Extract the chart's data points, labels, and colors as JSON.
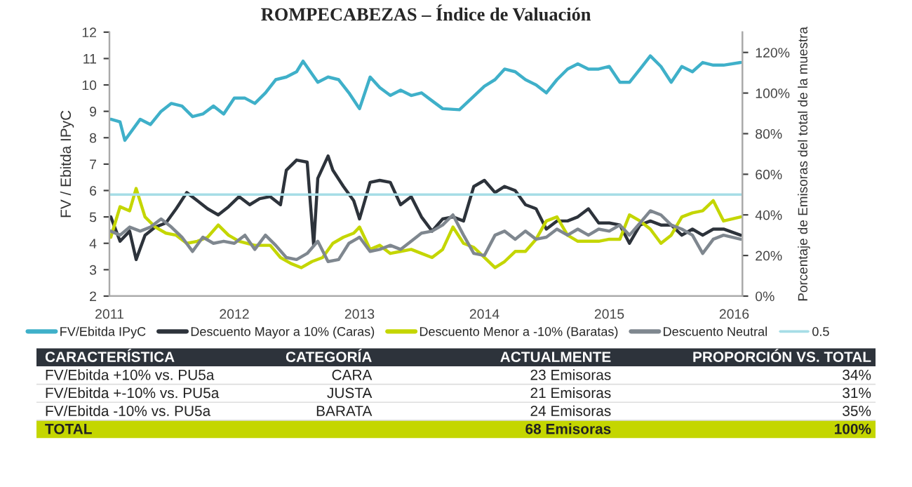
{
  "chart_data": [
    {
      "type": "line",
      "title": "ROMPECABEZAS – Índice de Valuación",
      "ylabel": "FV / Ebitda IPyC",
      "y2label": "Porcentaje de Emisoras del total de la muestra",
      "xlim": [
        "2011-01-01",
        "2016-01-25"
      ],
      "xticks": [
        {
          "value": "2011-01-01",
          "label": "2011"
        },
        {
          "value": "2012-01-01",
          "label": "2012"
        },
        {
          "value": "2013-01-01",
          "label": "2013"
        },
        {
          "value": "2014-01-01",
          "label": "2014"
        },
        {
          "value": "2015-01-01",
          "label": "2015"
        },
        {
          "value": "2016-01-01",
          "label": "2016"
        }
      ],
      "ylim": [
        2,
        12
      ],
      "yticks": [
        2,
        3,
        4,
        5,
        6,
        7,
        8,
        9,
        10,
        11,
        12
      ],
      "y2lim": [
        0,
        1.3
      ],
      "y2ticks": [
        {
          "value": 0,
          "label": "0%"
        },
        {
          "value": 0.2,
          "label": "20%"
        },
        {
          "value": 0.4,
          "label": "40%"
        },
        {
          "value": 0.6,
          "label": "60%"
        },
        {
          "value": 0.8,
          "label": "80%"
        },
        {
          "value": 1.0,
          "label": "100%"
        },
        {
          "value": 1.2,
          "label": "120%"
        }
      ],
      "legend": "bottom",
      "ref_lines": [
        {
          "axis": "y2",
          "value": 0.5,
          "label": "0.5",
          "color": "#a6dde6"
        }
      ],
      "series": [
        {
          "name": "FV/Ebitda IPyC",
          "color": "#3fb0c9",
          "x": [
            "2011-01-05",
            "2011-02-01",
            "2011-02-15",
            "2011-04-01",
            "2011-05-01",
            "2011-06-01",
            "2011-07-01",
            "2011-08-01",
            "2011-09-01",
            "2011-10-01",
            "2011-11-01",
            "2011-12-01",
            "2012-01-01",
            "2012-02-01",
            "2012-03-01",
            "2012-04-01",
            "2012-05-01",
            "2012-06-01",
            "2012-07-01",
            "2012-07-20",
            "2012-09-01",
            "2012-10-01",
            "2012-11-01",
            "2012-12-01",
            "2013-01-01",
            "2013-02-01",
            "2013-03-01",
            "2013-04-01",
            "2013-05-01",
            "2013-06-01",
            "2013-07-01",
            "2013-08-01",
            "2013-09-01",
            "2013-10-20",
            "2014-01-01",
            "2014-02-01",
            "2014-03-01",
            "2014-04-01",
            "2014-05-01",
            "2014-06-01",
            "2014-07-01",
            "2014-08-01",
            "2014-09-01",
            "2014-10-01",
            "2014-11-01",
            "2014-12-01",
            "2015-01-01",
            "2015-02-01",
            "2015-03-01",
            "2015-04-01",
            "2015-05-01",
            "2015-06-01",
            "2015-07-01",
            "2015-08-01",
            "2015-09-01",
            "2015-10-01",
            "2015-11-01",
            "2015-12-01",
            "2016-01-20"
          ],
          "values": [
            8.7,
            8.6,
            7.9,
            8.7,
            8.5,
            9.0,
            9.3,
            9.2,
            8.8,
            8.9,
            9.2,
            8.9,
            9.5,
            9.5,
            9.3,
            9.7,
            10.2,
            10.3,
            10.5,
            10.9,
            10.1,
            10.3,
            10.2,
            9.7,
            9.1,
            10.3,
            9.9,
            9.6,
            9.8,
            9.6,
            9.7,
            9.4,
            9.1,
            9.06,
            9.95,
            10.2,
            10.6,
            10.5,
            10.2,
            10.0,
            9.7,
            10.2,
            10.6,
            10.8,
            10.6,
            10.6,
            10.7,
            10.1,
            10.1,
            10.6,
            11.1,
            10.7,
            10.1,
            10.7,
            10.5,
            10.85,
            10.75,
            10.75,
            10.85
          ]
        },
        {
          "name": "Descuento Mayor a 10% (Caras)",
          "color": "#2d333b",
          "axis": "y2",
          "x": [
            "2011-01-05",
            "2011-02-01",
            "2011-03-01",
            "2011-03-20",
            "2011-04-15",
            "2011-05-15",
            "2011-06-15",
            "2011-07-15",
            "2011-08-15",
            "2011-09-15",
            "2011-10-15",
            "2011-11-15",
            "2011-12-15",
            "2012-01-15",
            "2012-02-15",
            "2012-03-15",
            "2012-04-15",
            "2012-05-15",
            "2012-06-01",
            "2012-07-01",
            "2012-08-01",
            "2012-08-20",
            "2012-09-01",
            "2012-10-01",
            "2012-10-15",
            "2012-11-15",
            "2012-12-15",
            "2013-01-01",
            "2013-02-01",
            "2013-03-01",
            "2013-04-01",
            "2013-05-01",
            "2013-06-01",
            "2013-07-01",
            "2013-08-01",
            "2013-09-01",
            "2013-10-01",
            "2013-11-01",
            "2013-12-01",
            "2014-01-01",
            "2014-02-01",
            "2014-03-01",
            "2014-04-01",
            "2014-05-01",
            "2014-06-01",
            "2014-07-01",
            "2014-08-01",
            "2014-09-01",
            "2014-10-01",
            "2014-11-01",
            "2014-12-01",
            "2015-01-01",
            "2015-02-01",
            "2015-03-01",
            "2015-04-01",
            "2015-05-01",
            "2015-06-01",
            "2015-07-01",
            "2015-08-01",
            "2015-09-01",
            "2015-10-01",
            "2015-11-01",
            "2015-12-01",
            "2016-01-20"
          ],
          "values": [
            0.39,
            0.27,
            0.32,
            0.18,
            0.3,
            0.34,
            0.36,
            0.43,
            0.51,
            0.47,
            0.43,
            0.4,
            0.44,
            0.49,
            0.45,
            0.48,
            0.49,
            0.45,
            0.62,
            0.67,
            0.66,
            0.25,
            0.58,
            0.69,
            0.62,
            0.54,
            0.47,
            0.38,
            0.56,
            0.57,
            0.56,
            0.45,
            0.49,
            0.39,
            0.32,
            0.38,
            0.39,
            0.37,
            0.54,
            0.57,
            0.51,
            0.54,
            0.52,
            0.45,
            0.43,
            0.33,
            0.37,
            0.37,
            0.39,
            0.43,
            0.36,
            0.36,
            0.35,
            0.26,
            0.35,
            0.37,
            0.35,
            0.35,
            0.3,
            0.33,
            0.3,
            0.33,
            0.33,
            0.3
          ]
        },
        {
          "name": "Descuento Menor a -10% (Baratas)",
          "color": "#c4d600",
          "axis": "y2",
          "x": [
            "2011-01-05",
            "2011-02-01",
            "2011-03-01",
            "2011-03-20",
            "2011-04-15",
            "2011-05-15",
            "2011-06-15",
            "2011-07-15",
            "2011-08-15",
            "2011-09-15",
            "2011-10-15",
            "2011-11-15",
            "2011-12-15",
            "2012-01-15",
            "2012-03-01",
            "2012-04-15",
            "2012-05-15",
            "2012-06-15",
            "2012-07-15",
            "2012-08-15",
            "2012-09-15",
            "2012-10-15",
            "2012-11-15",
            "2012-12-15",
            "2013-01-01",
            "2013-02-01",
            "2013-03-01",
            "2013-04-01",
            "2013-05-01",
            "2013-06-01",
            "2013-07-01",
            "2013-08-01",
            "2013-09-01",
            "2013-10-01",
            "2013-11-01",
            "2013-12-01",
            "2014-01-01",
            "2014-02-01",
            "2014-03-01",
            "2014-04-01",
            "2014-05-01",
            "2014-06-01",
            "2014-07-01",
            "2014-08-01",
            "2014-09-01",
            "2014-10-01",
            "2014-11-01",
            "2014-12-01",
            "2015-01-01",
            "2015-02-01",
            "2015-03-01",
            "2015-04-01",
            "2015-05-01",
            "2015-06-01",
            "2015-07-01",
            "2015-08-01",
            "2015-09-01",
            "2015-10-01",
            "2015-11-01",
            "2015-12-01",
            "2016-01-20"
          ],
          "values": [
            0.29,
            0.44,
            0.42,
            0.53,
            0.39,
            0.34,
            0.31,
            0.3,
            0.26,
            0.27,
            0.29,
            0.35,
            0.3,
            0.27,
            0.25,
            0.25,
            0.19,
            0.16,
            0.14,
            0.17,
            0.19,
            0.26,
            0.29,
            0.31,
            0.34,
            0.23,
            0.25,
            0.21,
            0.22,
            0.23,
            0.21,
            0.19,
            0.23,
            0.34,
            0.26,
            0.24,
            0.19,
            0.14,
            0.17,
            0.22,
            0.22,
            0.28,
            0.37,
            0.39,
            0.3,
            0.27,
            0.27,
            0.27,
            0.28,
            0.28,
            0.4,
            0.37,
            0.33,
            0.26,
            0.3,
            0.39,
            0.41,
            0.42,
            0.47,
            0.37,
            0.39
          ]
        },
        {
          "name": "Descuento Neutral",
          "color": "#7f878f",
          "axis": "y2",
          "x": [
            "2011-01-05",
            "2011-02-01",
            "2011-03-01",
            "2011-04-01",
            "2011-05-01",
            "2011-06-01",
            "2011-07-01",
            "2011-08-01",
            "2011-09-01",
            "2011-10-01",
            "2011-11-01",
            "2011-12-01",
            "2012-01-01",
            "2012-02-01",
            "2012-03-01",
            "2012-04-01",
            "2012-05-01",
            "2012-06-01",
            "2012-07-01",
            "2012-08-01",
            "2012-09-01",
            "2012-10-01",
            "2012-11-01",
            "2012-12-01",
            "2013-01-01",
            "2013-02-01",
            "2013-03-01",
            "2013-04-01",
            "2013-05-01",
            "2013-06-01",
            "2013-07-01",
            "2013-08-01",
            "2013-09-01",
            "2013-10-01",
            "2013-11-01",
            "2013-12-01",
            "2014-01-01",
            "2014-02-01",
            "2014-03-01",
            "2014-04-01",
            "2014-05-01",
            "2014-06-01",
            "2014-07-01",
            "2014-08-01",
            "2014-09-01",
            "2014-10-01",
            "2014-11-01",
            "2014-12-01",
            "2015-01-01",
            "2015-02-01",
            "2015-03-01",
            "2015-04-01",
            "2015-05-01",
            "2015-06-01",
            "2015-07-01",
            "2015-08-01",
            "2015-09-01",
            "2015-10-01",
            "2015-11-01",
            "2015-12-01",
            "2016-01-20"
          ],
          "values": [
            0.32,
            0.3,
            0.34,
            0.32,
            0.34,
            0.38,
            0.34,
            0.29,
            0.22,
            0.29,
            0.26,
            0.27,
            0.26,
            0.3,
            0.23,
            0.3,
            0.25,
            0.19,
            0.18,
            0.21,
            0.27,
            0.17,
            0.18,
            0.26,
            0.29,
            0.22,
            0.23,
            0.25,
            0.23,
            0.27,
            0.31,
            0.32,
            0.35,
            0.4,
            0.3,
            0.21,
            0.2,
            0.3,
            0.32,
            0.28,
            0.32,
            0.28,
            0.29,
            0.33,
            0.3,
            0.33,
            0.3,
            0.33,
            0.32,
            0.35,
            0.3,
            0.36,
            0.42,
            0.4,
            0.35,
            0.33,
            0.3,
            0.21,
            0.28,
            0.3,
            0.28
          ]
        }
      ]
    },
    {
      "type": "other",
      "categories": [
        "CARACTERÍSTICA",
        "CATEGORÍA",
        "ACTUALMENTE",
        "PROPORCIÓN VS. TOTAL"
      ],
      "cell_labels": [
        [
          "FV/Ebitda +10% vs. PU5a",
          "CARA",
          "23 Emisoras",
          "34%"
        ],
        [
          "FV/Ebitda +-10% vs. PU5a",
          "JUSTA",
          "21 Emisoras",
          "31%"
        ],
        [
          "FV/Ebitda -10% vs. PU5a",
          "BARATA",
          "24 Emisoras",
          "35%"
        ],
        [
          "TOTAL",
          null,
          "68 Emisoras",
          "100%"
        ]
      ],
      "colors": [
        "#2d333b",
        null,
        null,
        null,
        "#c4d600"
      ]
    }
  ]
}
